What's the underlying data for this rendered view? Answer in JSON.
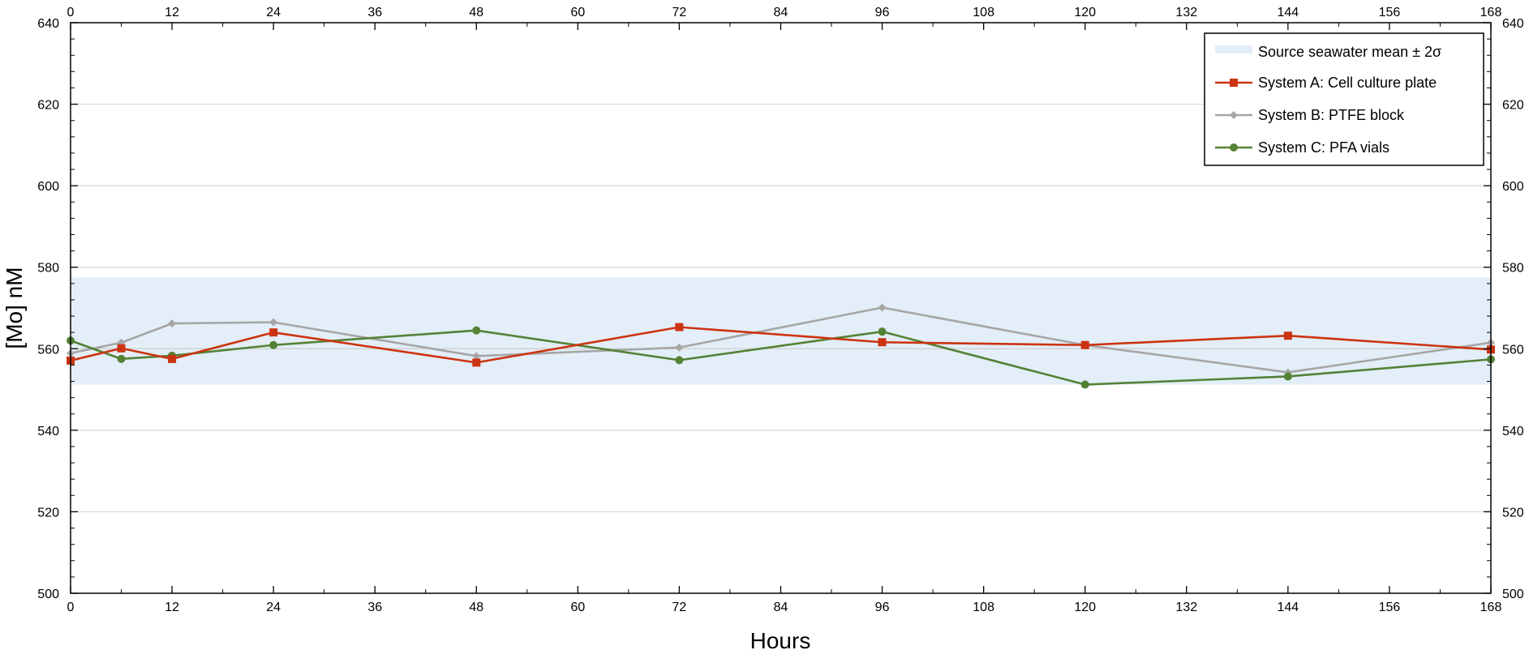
{
  "chart_data": {
    "type": "line",
    "xlabel": "Hours",
    "ylabel": "[Mo] nM",
    "xlim": [
      0,
      168
    ],
    "ylim": [
      500,
      640
    ],
    "x_ticks": [
      0,
      12,
      24,
      36,
      48,
      60,
      72,
      84,
      96,
      108,
      120,
      132,
      144,
      156,
      168
    ],
    "x_minor_step": 6,
    "y_ticks": [
      500,
      520,
      540,
      560,
      580,
      600,
      620,
      640
    ],
    "y_minor_step": 4,
    "grid": {
      "horizontal": true,
      "vertical": false
    },
    "mirrored_axes": true,
    "legend_position": "top-right",
    "band": {
      "name": "Source seawater mean ± 2σ",
      "mean": 560,
      "lower": 551.2,
      "upper": 577.5,
      "color": "#e3eef8",
      "mean_line_color": "#d0d0d0"
    },
    "series": [
      {
        "name": "System A: Cell culture plate",
        "color": "#cc3311",
        "marker": "square",
        "x": [
          0,
          6,
          12,
          24,
          48,
          72,
          96,
          120,
          144,
          168
        ],
        "y": [
          557.1,
          560.1,
          557.5,
          564.0,
          556.6,
          565.3,
          561.6,
          560.9,
          563.2,
          559.8
        ]
      },
      {
        "name": "System B: PTFE block",
        "color": "#a6a6a6",
        "marker": "diamond",
        "x": [
          0,
          6,
          12,
          24,
          48,
          72,
          96,
          120,
          144,
          168
        ],
        "y": [
          558.9,
          561.5,
          566.2,
          566.5,
          558.2,
          560.3,
          570.1,
          560.9,
          554.2,
          561.5
        ]
      },
      {
        "name": "System C: PFA vials",
        "color": "#548235",
        "marker": "circle",
        "x": [
          0,
          6,
          12,
          24,
          48,
          72,
          96,
          120,
          144,
          168
        ],
        "y": [
          562.0,
          557.5,
          558.3,
          560.9,
          564.5,
          557.2,
          564.2,
          551.2,
          553.2,
          557.4
        ]
      }
    ]
  }
}
